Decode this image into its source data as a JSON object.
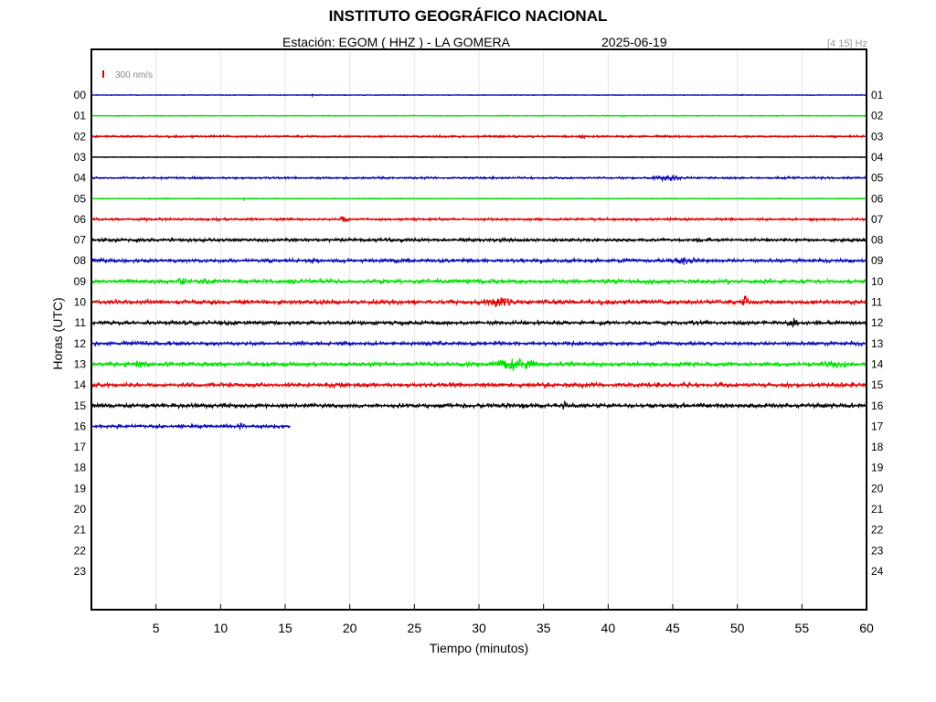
{
  "header": {
    "title": "INSTITUTO GEOGRÁFICO NACIONAL",
    "station": "Estación:  EGOM ( HHZ ) - LA GOMERA",
    "date": "2025-06-19",
    "filter": "[4 15] Hz"
  },
  "colors": {
    "trace_cycle": [
      "#0a0ab4",
      "#00e000",
      "#e00000",
      "#000000"
    ],
    "grid": "#e6e6e6",
    "scale_bar": "#e00000"
  },
  "chart_data": {
    "type": "line",
    "title": "INSTITUTO GEOGRÁFICO NACIONAL",
    "xlabel": "Tiempo (minutos)",
    "ylabel": "Horas (UTC)",
    "xlim": [
      0,
      60
    ],
    "x_ticks": [
      5,
      10,
      15,
      20,
      25,
      30,
      35,
      40,
      45,
      50,
      55,
      60
    ],
    "left_labels": [
      "00",
      "01",
      "02",
      "03",
      "04",
      "05",
      "06",
      "07",
      "08",
      "09",
      "10",
      "11",
      "12",
      "13",
      "14",
      "15",
      "16",
      "17",
      "18",
      "19",
      "20",
      "21",
      "22",
      "23"
    ],
    "right_labels": [
      "01",
      "02",
      "03",
      "04",
      "05",
      "06",
      "07",
      "08",
      "09",
      "10",
      "11",
      "12",
      "13",
      "14",
      "15",
      "16",
      "17",
      "18",
      "19",
      "20",
      "21",
      "22",
      "23",
      "24"
    ],
    "grid": true,
    "scale_label": "300 nm/s",
    "series": [
      {
        "hour": 0,
        "end_minute": 60,
        "noise": 0.4,
        "events": [
          {
            "minute": 17.1,
            "amp": 1.5,
            "width": 0.1
          },
          {
            "minute": 50.4,
            "amp": 1.5,
            "width": 0.1
          }
        ]
      },
      {
        "hour": 1,
        "end_minute": 60,
        "noise": 0.5,
        "events": []
      },
      {
        "hour": 2,
        "end_minute": 60,
        "noise": 1.0,
        "events": [
          {
            "minute": 38.0,
            "amp": 2.0,
            "width": 0.3
          }
        ]
      },
      {
        "hour": 3,
        "end_minute": 60,
        "noise": 0.4,
        "events": []
      },
      {
        "hour": 4,
        "end_minute": 60,
        "noise": 1.0,
        "events": [
          {
            "minute": 44.5,
            "amp": 2.5,
            "width": 1.5
          }
        ]
      },
      {
        "hour": 5,
        "end_minute": 60,
        "noise": 0.5,
        "events": [
          {
            "minute": 11.8,
            "amp": 1.5,
            "width": 0.1
          }
        ]
      },
      {
        "hour": 6,
        "end_minute": 60,
        "noise": 1.2,
        "events": [
          {
            "minute": 19.5,
            "amp": 3.0,
            "width": 0.5
          }
        ]
      },
      {
        "hour": 7,
        "end_minute": 60,
        "noise": 1.6,
        "events": []
      },
      {
        "hour": 8,
        "end_minute": 60,
        "noise": 1.8,
        "events": [
          {
            "minute": 46.0,
            "amp": 2.5,
            "width": 1.5
          }
        ]
      },
      {
        "hour": 9,
        "end_minute": 60,
        "noise": 2.0,
        "events": [
          {
            "minute": 7.0,
            "amp": 2.5,
            "width": 0.5
          }
        ]
      },
      {
        "hour": 10,
        "end_minute": 60,
        "noise": 2.0,
        "events": [
          {
            "minute": 31.5,
            "amp": 4.0,
            "width": 1.5
          },
          {
            "minute": 50.6,
            "amp": 6.0,
            "width": 0.3
          }
        ]
      },
      {
        "hour": 11,
        "end_minute": 60,
        "noise": 1.8,
        "events": [
          {
            "minute": 54.2,
            "amp": 4.0,
            "width": 0.6
          },
          {
            "minute": 34.6,
            "amp": 3.0,
            "width": 0.1
          }
        ]
      },
      {
        "hour": 12,
        "end_minute": 60,
        "noise": 1.8,
        "events": []
      },
      {
        "hour": 13,
        "end_minute": 60,
        "noise": 2.0,
        "events": [
          {
            "minute": 32.8,
            "amp": 6.0,
            "width": 2.0
          },
          {
            "minute": 4.0,
            "amp": 2.5,
            "width": 1.0
          },
          {
            "minute": 57.5,
            "amp": 2.5,
            "width": 1.5
          }
        ]
      },
      {
        "hour": 14,
        "end_minute": 60,
        "noise": 2.0,
        "events": []
      },
      {
        "hour": 15,
        "end_minute": 60,
        "noise": 2.0,
        "events": [
          {
            "minute": 36.6,
            "amp": 5.0,
            "width": 0.3
          }
        ]
      },
      {
        "hour": 16,
        "end_minute": 15.4,
        "noise": 1.8,
        "events": [
          {
            "minute": 11.5,
            "amp": 3.0,
            "width": 0.4
          }
        ]
      }
    ]
  }
}
